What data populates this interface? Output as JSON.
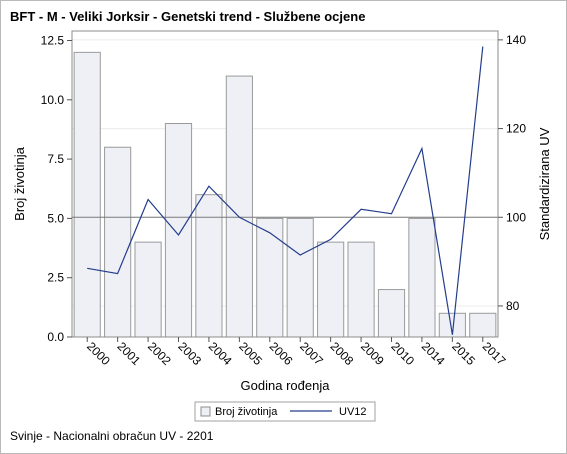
{
  "chart_data": {
    "type": "bar",
    "title": "BFT - M - Veliki Jorksir - Genetski trend - Službene ocjene",
    "footnote": "Svinje - Nacionalni obračun UV - 2201",
    "xlabel": "Godina rođenja",
    "ylabel": "Broj životinja",
    "y2label": "Standardizirana UV",
    "categories": [
      "2000",
      "2001",
      "2002",
      "2003",
      "2004",
      "2005",
      "2006",
      "2007",
      "2008",
      "2009",
      "2010",
      "2014",
      "2015",
      "2017"
    ],
    "series": [
      {
        "name": "Broj životinja",
        "type": "bar",
        "axis": "left",
        "color": "#eef0f6",
        "values": [
          12,
          8,
          4,
          9,
          6,
          11,
          5,
          5,
          4,
          4,
          2,
          5,
          1,
          1
        ]
      },
      {
        "name": "UV12",
        "type": "line",
        "axis": "right",
        "color": "#243d8c",
        "values": [
          88.5,
          87.3,
          104.0,
          96.0,
          107.0,
          100.0,
          96.5,
          91.5,
          95.0,
          101.8,
          100.8,
          115.5,
          73.5,
          138.5
        ]
      }
    ],
    "yticks": [
      "0.0",
      "2.5",
      "5.0",
      "7.5",
      "10.0",
      "12.5"
    ],
    "ylim": [
      0,
      12.9
    ],
    "y2ticks": [
      "80",
      "100",
      "120",
      "140"
    ],
    "y2lim": [
      73,
      142
    ],
    "reference_line": {
      "axis": "right",
      "value": 100
    },
    "legend_position": "bottom"
  }
}
